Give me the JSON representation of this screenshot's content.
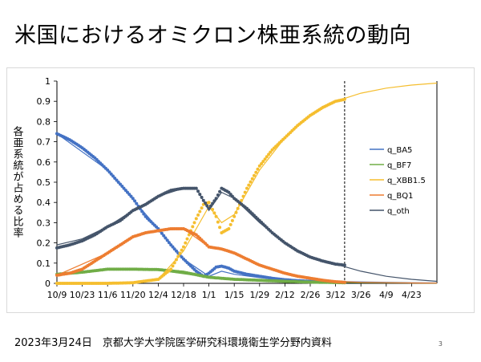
{
  "slide": {
    "title": "米国におけるオミクロン株亜系統の動向",
    "footer": "2023年3月24日　京都大学大学院医学研究科環境衛生学分野内資料",
    "page_number": "3"
  },
  "chart_data": {
    "type": "line",
    "title": "",
    "xlabel": "",
    "ylabel": "各亜系統が占める比率",
    "ylim": [
      0,
      1
    ],
    "yticks": [
      "0",
      "0.1",
      "0.2",
      "0.3",
      "0.4",
      "0.5",
      "0.6",
      "0.7",
      "0.8",
      "0.9",
      "1"
    ],
    "xticks": [
      "10/9",
      "10/23",
      "11/6",
      "11/20",
      "12/4",
      "12/18",
      "1/1",
      "1/15",
      "1/29",
      "2/12",
      "2/26",
      "3/12",
      "3/26",
      "4/9",
      "4/23"
    ],
    "xlim": [
      "10/9",
      "5/7"
    ],
    "observed_end": "3/17",
    "legend_position": "right",
    "grid": false,
    "series": [
      {
        "name": "q_BA5",
        "color": "#4472C4",
        "observed": [
          [
            "10/9",
            0.74
          ],
          [
            "10/16",
            0.71
          ],
          [
            "10/23",
            0.67
          ],
          [
            "10/30",
            0.62
          ],
          [
            "11/6",
            0.56
          ],
          [
            "11/13",
            0.49
          ],
          [
            "11/20",
            0.42
          ],
          [
            "11/27",
            0.33
          ],
          [
            "12/4",
            0.27
          ],
          [
            "12/11",
            0.19
          ],
          [
            "12/18",
            0.12
          ],
          [
            "12/25",
            0.06
          ],
          [
            "12/29",
            0.035
          ],
          [
            "1/1",
            0.05
          ],
          [
            "1/5",
            0.08
          ],
          [
            "1/8",
            0.085
          ],
          [
            "1/12",
            0.075
          ],
          [
            "1/15",
            0.06
          ],
          [
            "1/22",
            0.045
          ],
          [
            "1/29",
            0.035
          ],
          [
            "2/5",
            0.025
          ],
          [
            "2/12",
            0.018
          ],
          [
            "2/19",
            0.013
          ],
          [
            "2/26",
            0.01
          ],
          [
            "3/5",
            0.008
          ],
          [
            "3/12",
            0.006
          ],
          [
            "3/17",
            0.005
          ]
        ],
        "fitted": [
          [
            "10/9",
            0.74
          ],
          [
            "11/6",
            0.56
          ],
          [
            "12/4",
            0.27
          ],
          [
            "12/18",
            0.12
          ],
          [
            "1/1",
            0.035
          ],
          [
            "1/8",
            0.06
          ],
          [
            "1/15",
            0.045
          ],
          [
            "1/29",
            0.028
          ],
          [
            "2/12",
            0.018
          ],
          [
            "3/12",
            0.01
          ],
          [
            "3/26",
            0.007
          ],
          [
            "4/23",
            0.003
          ],
          [
            "5/7",
            0.002
          ]
        ]
      },
      {
        "name": "q_BF7",
        "color": "#70AD47",
        "observed": [
          [
            "10/9",
            0.045
          ],
          [
            "10/23",
            0.055
          ],
          [
            "11/6",
            0.07
          ],
          [
            "11/20",
            0.07
          ],
          [
            "12/4",
            0.068
          ],
          [
            "12/18",
            0.055
          ],
          [
            "1/1",
            0.03
          ],
          [
            "1/15",
            0.02
          ],
          [
            "1/29",
            0.015
          ],
          [
            "2/12",
            0.01
          ],
          [
            "2/26",
            0.006
          ],
          [
            "3/12",
            0.004
          ],
          [
            "3/17",
            0.003
          ]
        ],
        "fitted": [
          [
            "10/9",
            0.045
          ],
          [
            "11/6",
            0.07
          ],
          [
            "12/4",
            0.065
          ],
          [
            "1/1",
            0.03
          ],
          [
            "2/12",
            0.01
          ],
          [
            "3/26",
            0.003
          ],
          [
            "5/7",
            0.001
          ]
        ]
      },
      {
        "name": "q_XBB1.5",
        "color": "#F5BE2F",
        "observed": [
          [
            "10/9",
            0.0
          ],
          [
            "11/6",
            0.0
          ],
          [
            "11/20",
            0.003
          ],
          [
            "12/4",
            0.02
          ],
          [
            "12/11",
            0.07
          ],
          [
            "12/18",
            0.18
          ],
          [
            "12/25",
            0.32
          ],
          [
            "12/29",
            0.39
          ],
          [
            "1/1",
            0.4
          ],
          [
            "1/5",
            0.33
          ],
          [
            "1/8",
            0.25
          ],
          [
            "1/12",
            0.27
          ],
          [
            "1/15",
            0.33
          ],
          [
            "1/22",
            0.47
          ],
          [
            "1/29",
            0.58
          ],
          [
            "2/5",
            0.66
          ],
          [
            "2/12",
            0.72
          ],
          [
            "2/19",
            0.78
          ],
          [
            "2/26",
            0.83
          ],
          [
            "3/5",
            0.87
          ],
          [
            "3/12",
            0.9
          ],
          [
            "3/17",
            0.91
          ]
        ],
        "fitted": [
          [
            "10/9",
            0.0
          ],
          [
            "11/20",
            0.003
          ],
          [
            "12/4",
            0.02
          ],
          [
            "12/18",
            0.16
          ],
          [
            "1/1",
            0.38
          ],
          [
            "1/8",
            0.3
          ],
          [
            "1/15",
            0.34
          ],
          [
            "1/29",
            0.56
          ],
          [
            "2/12",
            0.72
          ],
          [
            "2/26",
            0.83
          ],
          [
            "3/12",
            0.9
          ],
          [
            "3/26",
            0.94
          ],
          [
            "4/9",
            0.965
          ],
          [
            "4/23",
            0.98
          ],
          [
            "5/7",
            0.99
          ]
        ]
      },
      {
        "name": "q_BQ1",
        "color": "#ED7D31",
        "observed": [
          [
            "10/9",
            0.04
          ],
          [
            "10/16",
            0.05
          ],
          [
            "10/23",
            0.07
          ],
          [
            "10/30",
            0.11
          ],
          [
            "11/6",
            0.15
          ],
          [
            "11/13",
            0.19
          ],
          [
            "11/20",
            0.23
          ],
          [
            "11/27",
            0.25
          ],
          [
            "12/4",
            0.26
          ],
          [
            "12/11",
            0.27
          ],
          [
            "12/18",
            0.27
          ],
          [
            "12/25",
            0.24
          ],
          [
            "1/1",
            0.18
          ],
          [
            "1/8",
            0.17
          ],
          [
            "1/15",
            0.15
          ],
          [
            "1/22",
            0.12
          ],
          [
            "1/29",
            0.09
          ],
          [
            "2/5",
            0.07
          ],
          [
            "2/12",
            0.05
          ],
          [
            "2/19",
            0.035
          ],
          [
            "2/26",
            0.025
          ],
          [
            "3/5",
            0.015
          ],
          [
            "3/12",
            0.008
          ],
          [
            "3/17",
            0.005
          ]
        ],
        "fitted": [
          [
            "10/9",
            0.04
          ],
          [
            "11/6",
            0.15
          ],
          [
            "11/20",
            0.23
          ],
          [
            "12/4",
            0.26
          ],
          [
            "12/18",
            0.27
          ],
          [
            "1/1",
            0.18
          ],
          [
            "1/15",
            0.15
          ],
          [
            "1/29",
            0.09
          ],
          [
            "2/12",
            0.05
          ],
          [
            "3/12",
            0.01
          ],
          [
            "3/26",
            0.005
          ],
          [
            "4/23",
            0.002
          ],
          [
            "5/7",
            0.001
          ]
        ]
      },
      {
        "name": "q_oth",
        "color": "#44546A",
        "observed": [
          [
            "10/9",
            0.175
          ],
          [
            "10/16",
            0.19
          ],
          [
            "10/23",
            0.21
          ],
          [
            "10/30",
            0.24
          ],
          [
            "11/6",
            0.28
          ],
          [
            "11/13",
            0.31
          ],
          [
            "11/20",
            0.36
          ],
          [
            "11/27",
            0.39
          ],
          [
            "12/4",
            0.43
          ],
          [
            "12/11",
            0.46
          ],
          [
            "12/18",
            0.47
          ],
          [
            "12/25",
            0.47
          ],
          [
            "12/29",
            0.41
          ],
          [
            "1/1",
            0.37
          ],
          [
            "1/5",
            0.42
          ],
          [
            "1/8",
            0.47
          ],
          [
            "1/12",
            0.45
          ],
          [
            "1/15",
            0.42
          ],
          [
            "1/22",
            0.37
          ],
          [
            "1/29",
            0.31
          ],
          [
            "2/5",
            0.25
          ],
          [
            "2/12",
            0.2
          ],
          [
            "2/19",
            0.16
          ],
          [
            "2/26",
            0.13
          ],
          [
            "3/5",
            0.11
          ],
          [
            "3/12",
            0.095
          ],
          [
            "3/17",
            0.09
          ]
        ],
        "fitted": [
          [
            "10/9",
            0.19
          ],
          [
            "10/23",
            0.22
          ],
          [
            "11/6",
            0.28
          ],
          [
            "11/20",
            0.36
          ],
          [
            "12/4",
            0.43
          ],
          [
            "12/18",
            0.47
          ],
          [
            "12/25",
            0.47
          ],
          [
            "1/1",
            0.36
          ],
          [
            "1/8",
            0.45
          ],
          [
            "1/15",
            0.42
          ],
          [
            "1/29",
            0.3
          ],
          [
            "2/12",
            0.2
          ],
          [
            "2/26",
            0.13
          ],
          [
            "3/12",
            0.095
          ],
          [
            "3/26",
            0.06
          ],
          [
            "4/9",
            0.035
          ],
          [
            "4/23",
            0.02
          ],
          [
            "5/7",
            0.01
          ]
        ]
      }
    ]
  }
}
